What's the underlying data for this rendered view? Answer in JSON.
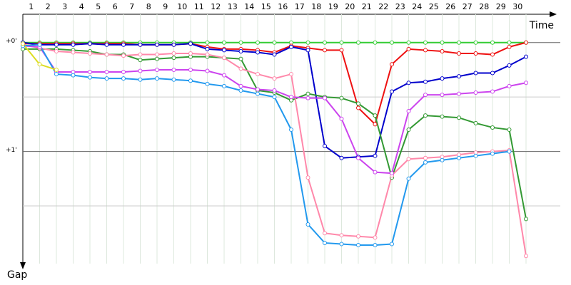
{
  "chart_data": {
    "type": "line",
    "x_label": "Time",
    "y_label": "Gap",
    "categories": [
      null,
      1,
      2,
      3,
      4,
      5,
      6,
      7,
      8,
      9,
      10,
      11,
      12,
      13,
      14,
      15,
      16,
      17,
      18,
      19,
      20,
      21,
      22,
      23,
      24,
      25,
      26,
      27,
      28,
      29,
      30
    ],
    "ylim": [
      -0.26,
      2.03
    ],
    "yticks": [
      {
        "value": 0,
        "label": "+0'"
      },
      {
        "value": 1,
        "label": "+1'"
      }
    ],
    "minor_yticks": [
      0.5,
      1.5
    ],
    "grid": true,
    "series": [
      {
        "name": "Green",
        "color": "#33cc33",
        "values": [
          0,
          0,
          0,
          0,
          0,
          0,
          0,
          0,
          0,
          0,
          0,
          0,
          0,
          0,
          0,
          0,
          0,
          0,
          0,
          0,
          0,
          0,
          0,
          0,
          0,
          0,
          0,
          0,
          0,
          0,
          0
        ]
      },
      {
        "name": "Red",
        "color": "#ee1111",
        "values": [
          0.01,
          0.01,
          0.01,
          0.01,
          0.01,
          0.01,
          0.01,
          0.02,
          0.02,
          0.02,
          0.01,
          0.04,
          0.06,
          0.06,
          0.07,
          0.09,
          0.03,
          0.05,
          0.07,
          0.07,
          0.6,
          0.75,
          0.2,
          0.06,
          0.07,
          0.08,
          0.1,
          0.1,
          0.11,
          0.04,
          0
        ]
      },
      {
        "name": "Blue",
        "color": "#0000cc",
        "values": [
          0,
          0.02,
          0.02,
          0.02,
          0.01,
          0.02,
          0.02,
          0.02,
          0.02,
          0.02,
          0.01,
          0.06,
          0.07,
          0.08,
          0.09,
          0.11,
          0.04,
          0.07,
          0.95,
          1.06,
          1.05,
          1.04,
          0.45,
          0.37,
          0.36,
          0.33,
          0.31,
          0.28,
          0.28,
          0.21,
          0.13
        ]
      },
      {
        "name": "Dark green",
        "color": "#339933",
        "values": [
          0.06,
          0.06,
          0.06,
          0.07,
          0.08,
          0.11,
          0.11,
          0.16,
          0.15,
          0.14,
          0.13,
          0.13,
          0.14,
          0.15,
          0.44,
          0.46,
          0.53,
          0.47,
          0.5,
          0.51,
          0.56,
          0.67,
          1.24,
          0.8,
          0.67,
          0.68,
          0.69,
          0.74,
          0.78,
          0.8,
          1.62
        ]
      },
      {
        "name": "Pink",
        "color": "#ff88aa",
        "values": [
          0.02,
          0.05,
          0.08,
          0.09,
          0.1,
          0.11,
          0.12,
          0.11,
          0.11,
          0.1,
          0.1,
          0.11,
          0.14,
          0.24,
          0.29,
          0.33,
          0.29,
          1.24,
          1.75,
          1.77,
          1.78,
          1.79,
          1.22,
          1.07,
          1.06,
          1.05,
          1.03,
          1.01,
          1,
          0.99,
          1.96
        ]
      },
      {
        "name": "Violet",
        "color": "#cc44ee",
        "values": [
          0.03,
          0.04,
          0.27,
          0.27,
          0.27,
          0.27,
          0.27,
          0.26,
          0.25,
          0.25,
          0.25,
          0.26,
          0.3,
          0.4,
          0.43,
          0.44,
          0.5,
          0.51,
          0.51,
          0.7,
          1.06,
          1.19,
          1.2,
          0.63,
          0.48,
          0.48,
          0.47,
          0.46,
          0.45,
          0.4,
          0.37
        ]
      },
      {
        "name": "Light blue",
        "color": "#2299ee",
        "values": [
          0.03,
          0.02,
          0.29,
          0.3,
          0.32,
          0.33,
          0.33,
          0.34,
          0.33,
          0.34,
          0.35,
          0.38,
          0.4,
          0.44,
          0.47,
          0.5,
          0.8,
          1.67,
          1.84,
          1.85,
          1.86,
          1.86,
          1.85,
          1.25,
          1.1,
          1.08,
          1.06,
          1.04,
          1.02,
          1,
          null
        ]
      },
      {
        "name": "Yellow",
        "color": "#dddd22",
        "values": [
          0.01,
          0.2,
          0.25,
          null,
          null,
          null,
          null,
          null,
          null,
          null,
          null,
          null,
          null,
          null,
          null,
          null,
          null,
          null,
          null,
          null,
          null,
          null,
          null,
          null,
          null,
          null,
          null,
          null,
          null,
          null,
          null
        ]
      }
    ]
  }
}
